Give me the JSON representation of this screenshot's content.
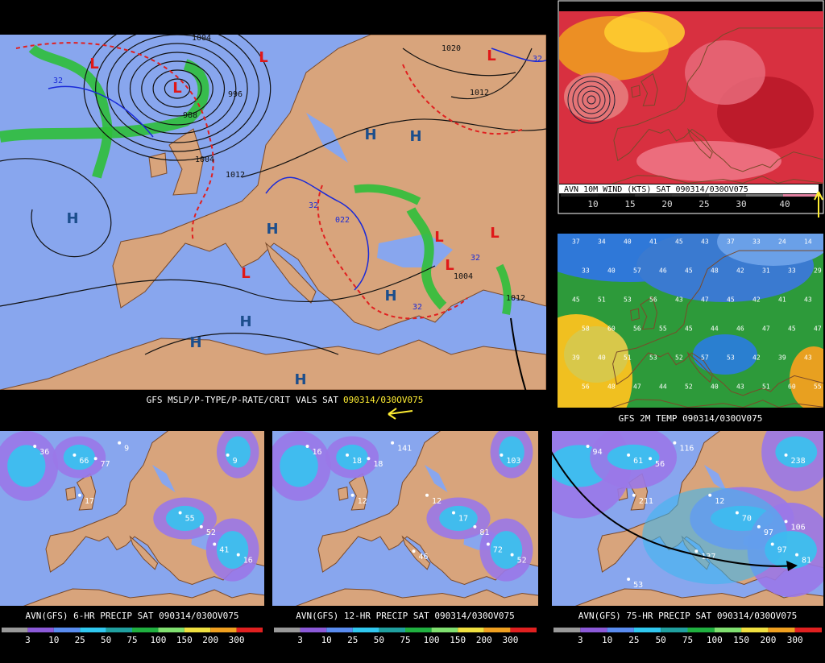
{
  "main_map": {
    "caption": "GFS MSLP/P-TYPE/P-RATE/CRIT VALS SAT",
    "caption_time": "090314/030OV075",
    "pressure_centers": [
      "H",
      "H",
      "H",
      "H",
      "H",
      "H",
      "H",
      "H",
      "L",
      "L",
      "L",
      "L",
      "L",
      "L",
      "L",
      "L"
    ],
    "isobar_labels": [
      "1020",
      "1012",
      "1012",
      "1004",
      "988",
      "996",
      "1004",
      "1004",
      "1012",
      "022",
      "32",
      "32",
      "32",
      "32",
      "32"
    ]
  },
  "wind_panel": {
    "caption": "AVN 10M WIND (KTS) SAT 090314/030OV075",
    "legend": [
      10,
      15,
      20,
      25,
      30,
      40
    ]
  },
  "temp_panel": {
    "caption": "GFS 2M TEMP   090314/030OV075",
    "values": [
      37,
      34,
      40,
      41,
      45,
      43,
      37,
      33,
      24,
      14,
      33,
      40,
      57,
      46,
      45,
      48,
      42,
      31,
      33,
      29,
      45,
      51,
      53,
      56,
      43,
      47,
      45,
      42,
      41,
      43,
      58,
      60,
      56,
      55,
      45,
      44,
      46,
      47,
      45,
      47,
      39,
      40,
      51,
      53,
      52,
      57,
      53,
      42,
      39,
      43,
      56,
      48,
      47,
      44,
      52,
      40,
      43,
      51,
      60,
      55
    ]
  },
  "precip_panels": [
    {
      "caption": "AVN(GFS) 6-HR PRECIP SAT 090314/030OV075",
      "values": [
        "36",
        "66",
        "77",
        "9",
        "9",
        "17",
        "55",
        "52",
        "41",
        "16"
      ]
    },
    {
      "caption": "AVN(GFS) 12-HR PRECIP SAT 090314/030OV075",
      "values": [
        "16",
        "18",
        "18",
        "141",
        "103",
        "12",
        "17",
        "81",
        "72",
        "52",
        "46",
        "12"
      ]
    },
    {
      "caption": "AVN(GFS) 75-HR PRECIP SAT 090314/030OV075",
      "values": [
        "94",
        "61",
        "56",
        "116",
        "238",
        "211",
        "70",
        "97",
        "97",
        "81",
        "137",
        "12",
        "106",
        "53"
      ]
    }
  ],
  "precip_legend": [
    3,
    10,
    25,
    50,
    75,
    100,
    150,
    200,
    300
  ]
}
